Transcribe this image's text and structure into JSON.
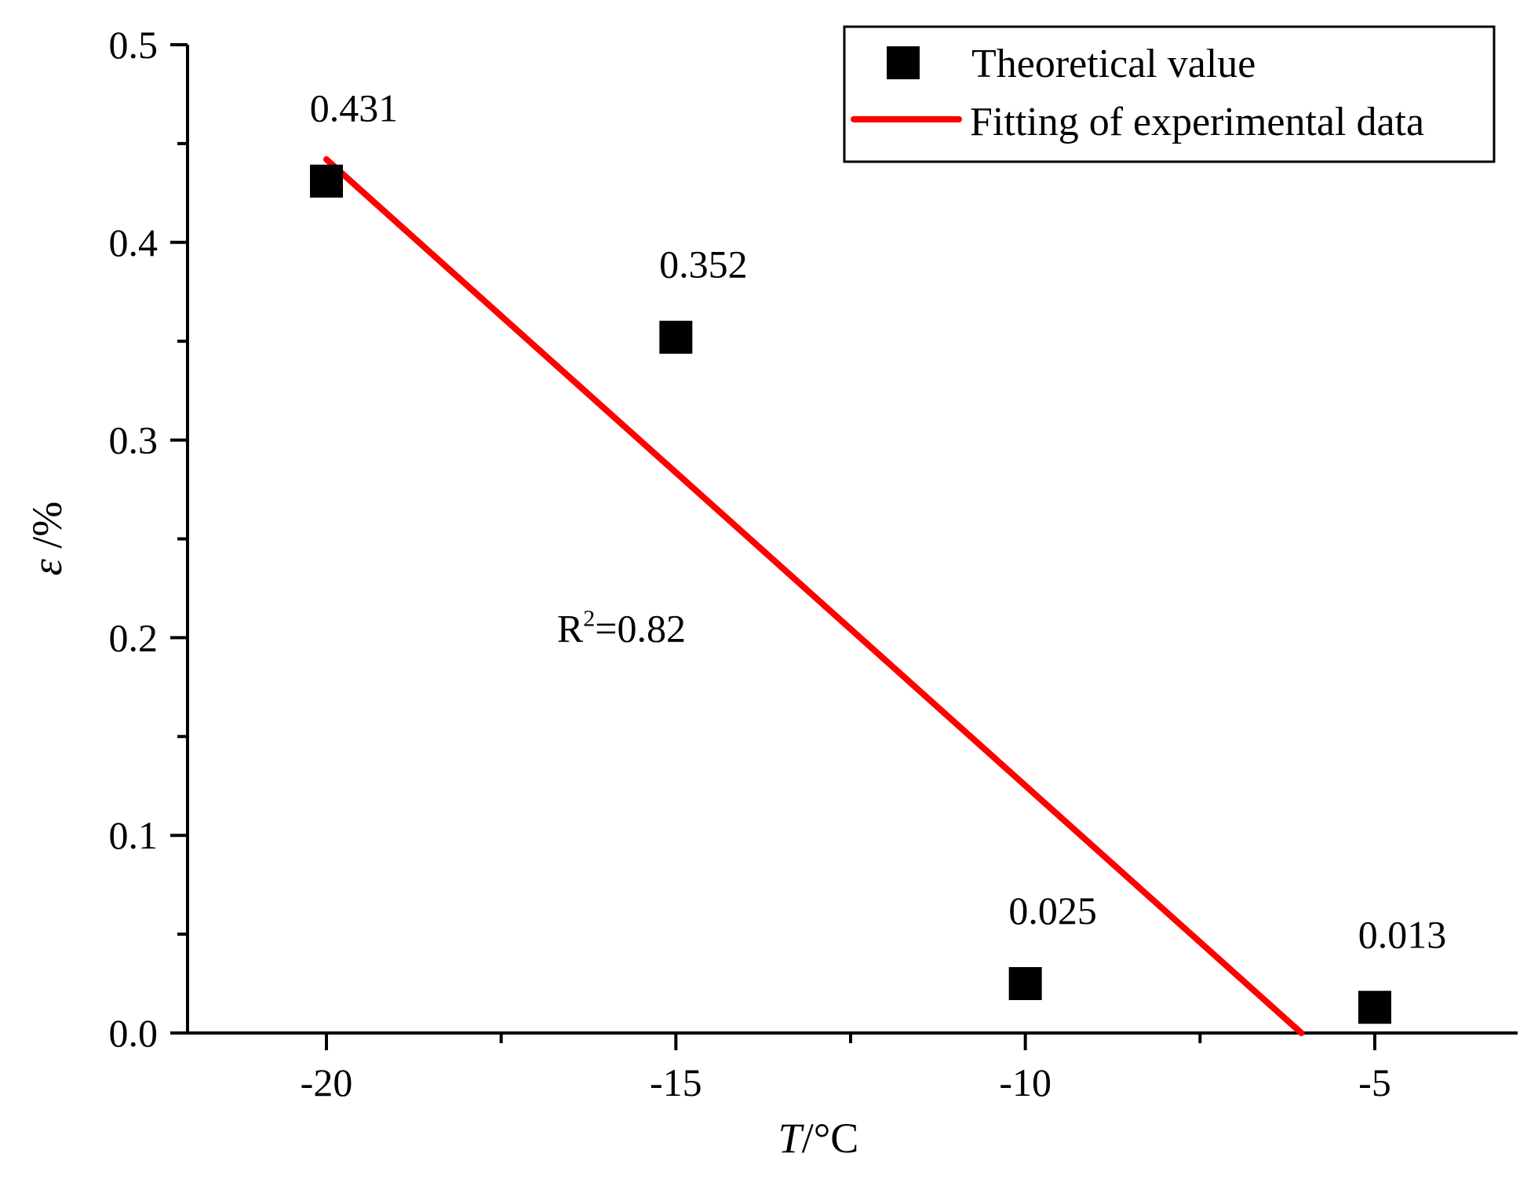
{
  "chart_data": {
    "type": "scatter",
    "xlabel_italic": "T",
    "xlabel_unit": "/°C",
    "ylabel_italic": "ε",
    "ylabel_unit": " /%",
    "xlim": [
      -22,
      -2.8
    ],
    "ylim": [
      0,
      0.5
    ],
    "x_ticks": [
      -20,
      -15,
      -10,
      -5
    ],
    "x_tick_labels": [
      "-20",
      "-15",
      "-10",
      "-5"
    ],
    "x_minor_ticks": [
      -17.5,
      -12.5,
      -7.5
    ],
    "y_ticks": [
      0.0,
      0.1,
      0.2,
      0.3,
      0.4,
      0.5
    ],
    "y_tick_labels": [
      "0.0",
      "0.1",
      "0.2",
      "0.3",
      "0.4",
      "0.5"
    ],
    "y_minor_ticks": [
      0.05,
      0.15,
      0.25,
      0.35,
      0.45
    ],
    "series": [
      {
        "name": "Theoretical value",
        "kind": "scatter",
        "marker": "square",
        "color": "#000000",
        "x": [
          -20,
          -15,
          -10,
          -5
        ],
        "y": [
          0.431,
          0.352,
          0.025,
          0.013
        ],
        "labels": [
          "0.431",
          "0.352",
          "0.025",
          "0.013"
        ]
      },
      {
        "name": "Fitting of experimental data",
        "kind": "line",
        "color": "#ff0000",
        "x": [
          -20,
          -6.05
        ],
        "y": [
          0.442,
          0.0
        ]
      }
    ],
    "annotations": [
      {
        "text_base": "R",
        "text_sup": "2",
        "text_rest": "=0.82",
        "x": -16.7,
        "y": 0.198
      }
    ],
    "legend_position": "top-right",
    "grid": false
  }
}
